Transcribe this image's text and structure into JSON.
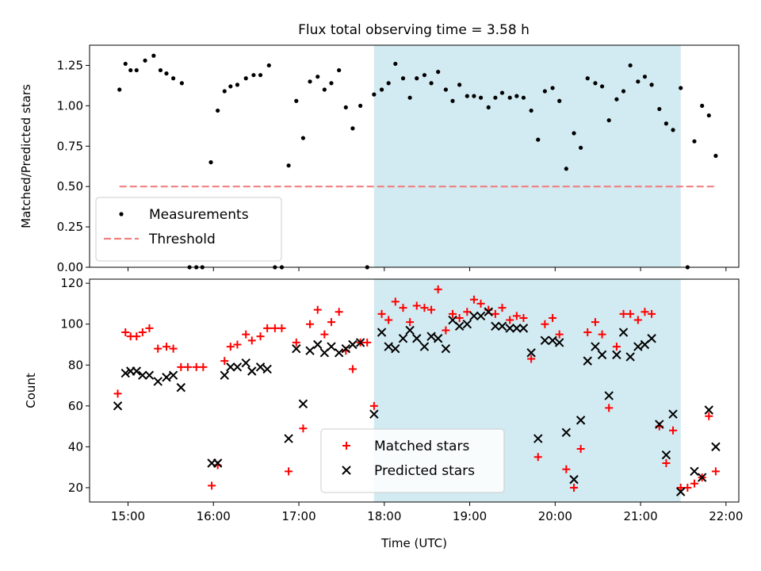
{
  "title": "Flux total observing time = 3.58 h",
  "shade_color": "#add8e6",
  "chart_data": [
    {
      "type": "scatter",
      "ylabel": "Matched/Predicted stars",
      "xlabel": "",
      "xlim": [
        14.55,
        22.15
      ],
      "ylim": [
        0,
        1.375
      ],
      "y_ticks": [
        "0.00",
        "0.25",
        "0.50",
        "0.75",
        "1.00",
        "1.25"
      ],
      "legend_position": "lower-left",
      "shaded_x_range": [
        17.88,
        21.47
      ],
      "threshold": {
        "name": "Threshold",
        "y": 0.5,
        "x": [
          14.9,
          21.88
        ],
        "color": "#f08080"
      },
      "series": [
        {
          "name": "Measurements",
          "marker": "dot",
          "color": "#000000",
          "points": [
            [
              14.9,
              1.1
            ],
            [
              14.97,
              1.26
            ],
            [
              15.03,
              1.22
            ],
            [
              15.1,
              1.22
            ],
            [
              15.2,
              1.28
            ],
            [
              15.3,
              1.31
            ],
            [
              15.38,
              1.22
            ],
            [
              15.45,
              1.2
            ],
            [
              15.53,
              1.17
            ],
            [
              15.63,
              1.14
            ],
            [
              15.72,
              0.0
            ],
            [
              15.8,
              0.0
            ],
            [
              15.87,
              0.0
            ],
            [
              15.97,
              0.65
            ],
            [
              16.05,
              0.97
            ],
            [
              16.13,
              1.09
            ],
            [
              16.2,
              1.12
            ],
            [
              16.28,
              1.13
            ],
            [
              16.38,
              1.17
            ],
            [
              16.47,
              1.19
            ],
            [
              16.55,
              1.19
            ],
            [
              16.65,
              1.25
            ],
            [
              16.72,
              0.0
            ],
            [
              16.8,
              0.0
            ],
            [
              16.88,
              0.63
            ],
            [
              16.97,
              1.03
            ],
            [
              17.05,
              0.8
            ],
            [
              17.13,
              1.15
            ],
            [
              17.22,
              1.18
            ],
            [
              17.3,
              1.1
            ],
            [
              17.38,
              1.14
            ],
            [
              17.47,
              1.22
            ],
            [
              17.55,
              0.99
            ],
            [
              17.63,
              0.86
            ],
            [
              17.72,
              1.0
            ],
            [
              17.8,
              0.0
            ],
            [
              17.88,
              1.07
            ],
            [
              17.97,
              1.1
            ],
            [
              18.05,
              1.14
            ],
            [
              18.13,
              1.26
            ],
            [
              18.22,
              1.17
            ],
            [
              18.3,
              1.05
            ],
            [
              18.38,
              1.17
            ],
            [
              18.47,
              1.19
            ],
            [
              18.55,
              1.14
            ],
            [
              18.63,
              1.21
            ],
            [
              18.72,
              1.1
            ],
            [
              18.8,
              1.03
            ],
            [
              18.88,
              1.13
            ],
            [
              18.97,
              1.06
            ],
            [
              19.05,
              1.06
            ],
            [
              19.13,
              1.05
            ],
            [
              19.22,
              0.99
            ],
            [
              19.3,
              1.05
            ],
            [
              19.38,
              1.08
            ],
            [
              19.47,
              1.05
            ],
            [
              19.55,
              1.06
            ],
            [
              19.63,
              1.05
            ],
            [
              19.72,
              0.97
            ],
            [
              19.8,
              0.79
            ],
            [
              19.88,
              1.09
            ],
            [
              19.97,
              1.11
            ],
            [
              20.05,
              1.03
            ],
            [
              20.13,
              0.61
            ],
            [
              20.22,
              0.83
            ],
            [
              20.3,
              0.74
            ],
            [
              20.38,
              1.17
            ],
            [
              20.47,
              1.14
            ],
            [
              20.55,
              1.12
            ],
            [
              20.63,
              0.91
            ],
            [
              20.72,
              1.04
            ],
            [
              20.8,
              1.09
            ],
            [
              20.88,
              1.25
            ],
            [
              20.97,
              1.15
            ],
            [
              21.05,
              1.18
            ],
            [
              21.13,
              1.13
            ],
            [
              21.22,
              0.98
            ],
            [
              21.3,
              0.89
            ],
            [
              21.38,
              0.85
            ],
            [
              21.47,
              1.11
            ],
            [
              21.55,
              0.0
            ],
            [
              21.63,
              0.78
            ],
            [
              21.72,
              1.0
            ],
            [
              21.8,
              0.94
            ],
            [
              21.88,
              0.69
            ]
          ]
        }
      ]
    },
    {
      "type": "scatter",
      "ylabel": "Count",
      "xlabel": "Time (UTC)",
      "xlim": [
        14.55,
        22.15
      ],
      "ylim": [
        13,
        122
      ],
      "y_ticks": [
        "20",
        "40",
        "60",
        "80",
        "100",
        "120"
      ],
      "x_ticks": [
        "15:00",
        "16:00",
        "17:00",
        "18:00",
        "19:00",
        "20:00",
        "21:00",
        "22:00"
      ],
      "legend_position": "lower-center",
      "shaded_x_range": [
        17.88,
        21.47
      ],
      "series": [
        {
          "name": "Matched stars",
          "marker": "plus",
          "color": "#ff0000",
          "points": [
            [
              14.88,
              66
            ],
            [
              14.97,
              96
            ],
            [
              15.03,
              94
            ],
            [
              15.1,
              94
            ],
            [
              15.17,
              96
            ],
            [
              15.25,
              98
            ],
            [
              15.35,
              88
            ],
            [
              15.45,
              89
            ],
            [
              15.53,
              88
            ],
            [
              15.62,
              79
            ],
            [
              15.7,
              79
            ],
            [
              15.8,
              79
            ],
            [
              15.88,
              79
            ],
            [
              15.98,
              21
            ],
            [
              16.05,
              31
            ],
            [
              16.13,
              82
            ],
            [
              16.2,
              89
            ],
            [
              16.28,
              90
            ],
            [
              16.38,
              95
            ],
            [
              16.45,
              92
            ],
            [
              16.55,
              94
            ],
            [
              16.63,
              98
            ],
            [
              16.72,
              98
            ],
            [
              16.8,
              98
            ],
            [
              16.88,
              28
            ],
            [
              16.97,
              91
            ],
            [
              17.05,
              49
            ],
            [
              17.13,
              100
            ],
            [
              17.22,
              107
            ],
            [
              17.3,
              95
            ],
            [
              17.38,
              101
            ],
            [
              17.47,
              106
            ],
            [
              17.55,
              87
            ],
            [
              17.63,
              78
            ],
            [
              17.72,
              91
            ],
            [
              17.8,
              91
            ],
            [
              17.88,
              60
            ],
            [
              17.97,
              105
            ],
            [
              18.05,
              102
            ],
            [
              18.13,
              111
            ],
            [
              18.22,
              108
            ],
            [
              18.3,
              101
            ],
            [
              18.38,
              109
            ],
            [
              18.47,
              108
            ],
            [
              18.55,
              107
            ],
            [
              18.63,
              117
            ],
            [
              18.72,
              97
            ],
            [
              18.8,
              105
            ],
            [
              18.88,
              103
            ],
            [
              18.97,
              106
            ],
            [
              19.05,
              112
            ],
            [
              19.13,
              110
            ],
            [
              19.22,
              107
            ],
            [
              19.3,
              105
            ],
            [
              19.38,
              108
            ],
            [
              19.47,
              102
            ],
            [
              19.55,
              104
            ],
            [
              19.63,
              103
            ],
            [
              19.72,
              83
            ],
            [
              19.8,
              35
            ],
            [
              19.88,
              100
            ],
            [
              19.97,
              103
            ],
            [
              20.05,
              95
            ],
            [
              20.13,
              29
            ],
            [
              20.22,
              20
            ],
            [
              20.3,
              39
            ],
            [
              20.38,
              96
            ],
            [
              20.47,
              101
            ],
            [
              20.55,
              95
            ],
            [
              20.63,
              59
            ],
            [
              20.72,
              89
            ],
            [
              20.8,
              105
            ],
            [
              20.88,
              105
            ],
            [
              20.97,
              102
            ],
            [
              21.05,
              106
            ],
            [
              21.13,
              105
            ],
            [
              21.22,
              50
            ],
            [
              21.3,
              32
            ],
            [
              21.38,
              48
            ],
            [
              21.47,
              20
            ],
            [
              21.55,
              20
            ],
            [
              21.63,
              22
            ],
            [
              21.72,
              25
            ],
            [
              21.8,
              55
            ],
            [
              21.88,
              28
            ]
          ]
        },
        {
          "name": "Predicted stars",
          "marker": "x",
          "color": "#000000",
          "points": [
            [
              14.88,
              60
            ],
            [
              14.97,
              76
            ],
            [
              15.03,
              77
            ],
            [
              15.1,
              77
            ],
            [
              15.17,
              75
            ],
            [
              15.25,
              75
            ],
            [
              15.35,
              72
            ],
            [
              15.45,
              74
            ],
            [
              15.53,
              75
            ],
            [
              15.62,
              69
            ],
            [
              15.98,
              32
            ],
            [
              16.05,
              32
            ],
            [
              16.13,
              75
            ],
            [
              16.2,
              79
            ],
            [
              16.28,
              79
            ],
            [
              16.38,
              81
            ],
            [
              16.45,
              77
            ],
            [
              16.55,
              79
            ],
            [
              16.63,
              78
            ],
            [
              16.88,
              44
            ],
            [
              16.97,
              88
            ],
            [
              17.05,
              61
            ],
            [
              17.13,
              87
            ],
            [
              17.22,
              90
            ],
            [
              17.3,
              86
            ],
            [
              17.38,
              89
            ],
            [
              17.47,
              86
            ],
            [
              17.55,
              88
            ],
            [
              17.63,
              90
            ],
            [
              17.72,
              91
            ],
            [
              17.88,
              56
            ],
            [
              17.97,
              96
            ],
            [
              18.05,
              89
            ],
            [
              18.13,
              88
            ],
            [
              18.22,
              93
            ],
            [
              18.3,
              97
            ],
            [
              18.38,
              93
            ],
            [
              18.47,
              89
            ],
            [
              18.55,
              94
            ],
            [
              18.63,
              93
            ],
            [
              18.72,
              88
            ],
            [
              18.8,
              102
            ],
            [
              18.88,
              99
            ],
            [
              18.97,
              100
            ],
            [
              19.05,
              104
            ],
            [
              19.13,
              104
            ],
            [
              19.22,
              106
            ],
            [
              19.3,
              99
            ],
            [
              19.38,
              99
            ],
            [
              19.47,
              98
            ],
            [
              19.55,
              98
            ],
            [
              19.63,
              98
            ],
            [
              19.72,
              86
            ],
            [
              19.8,
              44
            ],
            [
              19.88,
              92
            ],
            [
              19.97,
              92
            ],
            [
              20.05,
              91
            ],
            [
              20.13,
              47
            ],
            [
              20.22,
              24
            ],
            [
              20.3,
              53
            ],
            [
              20.38,
              82
            ],
            [
              20.47,
              89
            ],
            [
              20.55,
              85
            ],
            [
              20.63,
              65
            ],
            [
              20.72,
              85
            ],
            [
              20.8,
              96
            ],
            [
              20.88,
              84
            ],
            [
              20.97,
              89
            ],
            [
              21.05,
              90
            ],
            [
              21.13,
              93
            ],
            [
              21.22,
              51
            ],
            [
              21.3,
              36
            ],
            [
              21.38,
              56
            ],
            [
              21.47,
              18
            ],
            [
              21.63,
              28
            ],
            [
              21.72,
              25
            ],
            [
              21.8,
              58
            ],
            [
              21.88,
              40
            ]
          ]
        }
      ]
    }
  ]
}
